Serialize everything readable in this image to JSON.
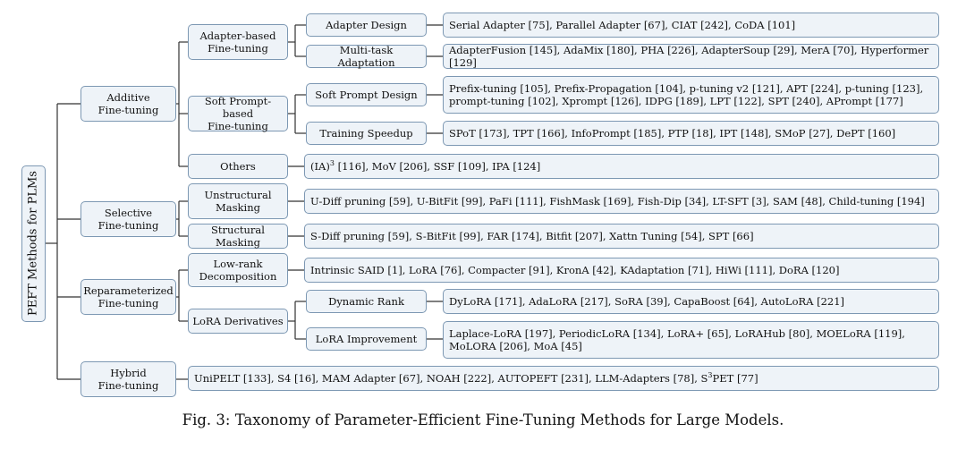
{
  "root": {
    "label": "PEFT Methods for PLMs"
  },
  "categories": [
    {
      "label": "Additive\nFine-tuning"
    },
    {
      "label": "Selective\nFine-tuning"
    },
    {
      "label": "Reparameterized\nFine-tuning"
    },
    {
      "label": "Hybrid\nFine-tuning"
    }
  ],
  "subcategories": [
    {
      "label": "Adapter-based\nFine-tuning"
    },
    {
      "label": "Soft Prompt-based\nFine-tuning"
    },
    {
      "label": "Others"
    },
    {
      "label": "Unstructural\nMasking"
    },
    {
      "label": "Structural Masking"
    },
    {
      "label": "Low-rank\nDecomposition"
    },
    {
      "label": "LoRA Derivatives"
    }
  ],
  "topics": [
    {
      "label": "Adapter Design"
    },
    {
      "label": "Multi-task Adaptation"
    },
    {
      "label": "Soft Prompt Design"
    },
    {
      "label": "Training Speedup"
    },
    {
      "label": "Dynamic Rank"
    },
    {
      "label": "LoRA Improvement"
    }
  ],
  "methods": [
    {
      "text": "Serial Adapter  [75], Parallel Adapter [67], CIAT [242], CoDA [101]"
    },
    {
      "text": "AdapterFusion [145], AdaMix [180], PHA [226], AdapterSoup [29], MerA [70], Hyperformer [129]"
    },
    {
      "text": "Prefix-tuning [105], Prefix-Propagation [104], p-tuning v2 [121], APT [224], p-tuning [123],\nprompt-tuning [102], Xprompt [126], IDPG [189], LPT [122], SPT [240], APrompt [177]"
    },
    {
      "text": "SPoT [173], TPT [166], InfoPrompt [185], PTP [18], IPT [148], SMoP [27], DePT [160]"
    },
    {
      "pre": "(IA)",
      "sup": "3",
      "text": " [116], MoV [206], SSF [109], IPA [124]"
    },
    {
      "text": "U-Diff pruning [59], U-BitFit [99], PaFi [111], FishMask [169], Fish-Dip [34], LT-SFT [3], SAM [48], Child-tuning [194]"
    },
    {
      "text": "S-Diff pruning [59], S-BitFit [99], FAR [174], Bitfit [207], Xattn Tuning [54], SPT [66]"
    },
    {
      "text": "Intrinsic SAID [1], LoRA [76], Compacter [91], KronA [42], KAdaptation [71], HiWi [111], DoRA [120]"
    },
    {
      "text": "DyLoRA [171], AdaLoRA [217], SoRA [39], CapaBoost [64], AutoLoRA [221]"
    },
    {
      "text": "Laplace-LoRA [197], PeriodicLoRA [134], LoRA+ [65],  LoRAHub [80], MOELoRA [119],\nMoLORA [206], MoA [45]"
    },
    {
      "pre": "UniPELT [133], S4 [16], MAM Adapter [67], NOAH [222], AUTOPEFT [231], LLM-Adapters [78], S",
      "sup": "3",
      "text": "PET [77]"
    }
  ],
  "caption": "Fig. 3: Taxonomy of Parameter-Efficient Fine-Tuning Methods for Large Models."
}
